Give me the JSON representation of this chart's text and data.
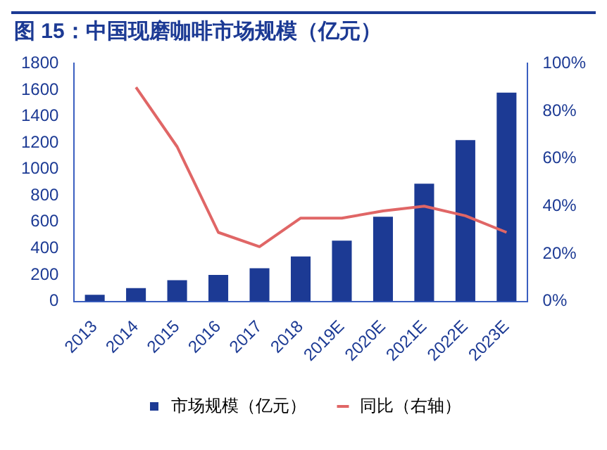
{
  "chart_data": {
    "type": "bar",
    "title": "图 15：中国现磨咖啡市场规模（亿元）",
    "categories": [
      "2013",
      "2014",
      "2015",
      "2016",
      "2017",
      "2018",
      "2019E",
      "2020E",
      "2021E",
      "2022E",
      "2023E"
    ],
    "series": [
      {
        "name": "市场规模（亿元）",
        "color": "#1c3a94",
        "values": [
          50,
          100,
          160,
          200,
          250,
          340,
          460,
          640,
          890,
          1220,
          1580
        ]
      },
      {
        "name": "同比（右轴）",
        "type": "line",
        "axis": "y2",
        "color": "#e06666",
        "values": [
          null,
          90,
          65,
          29,
          23,
          35,
          35,
          38,
          40,
          36,
          29
        ]
      }
    ],
    "ylim": [
      0,
      1800
    ],
    "yticks": [
      0,
      200,
      400,
      600,
      800,
      1000,
      1200,
      1400,
      1600,
      1800
    ],
    "y2lim": [
      0,
      100
    ],
    "y2ticks": [
      {
        "value": 0,
        "label": "0%"
      },
      {
        "value": 20,
        "label": "20%"
      },
      {
        "value": 40,
        "label": "40%"
      },
      {
        "value": 60,
        "label": "60%"
      },
      {
        "value": 80,
        "label": "80%"
      },
      {
        "value": 100,
        "label": "100%"
      }
    ],
    "legend": "bottom",
    "grid": false,
    "marker": "none"
  }
}
